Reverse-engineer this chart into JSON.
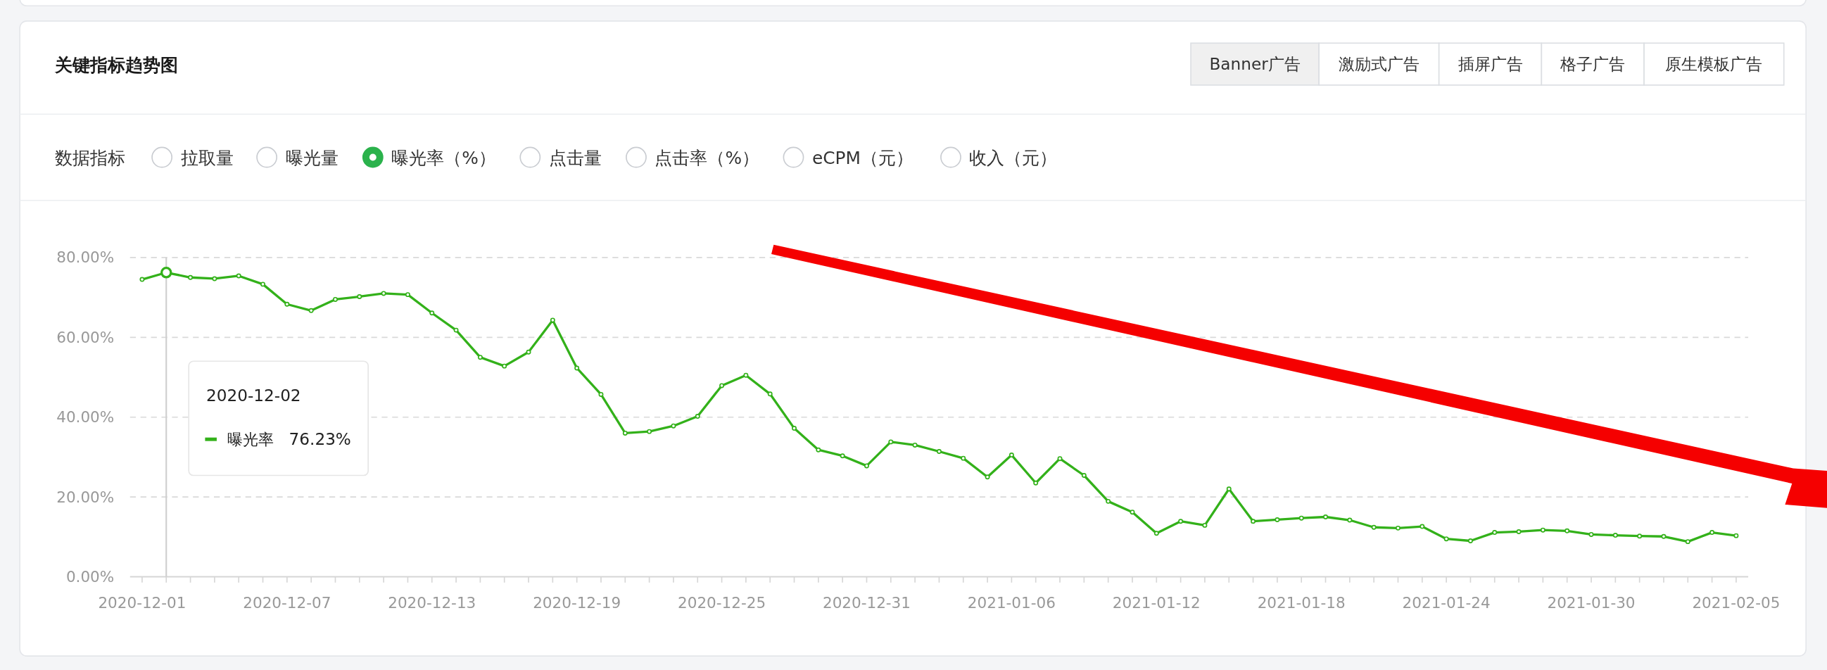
{
  "chart_data": {
    "type": "line",
    "title": "关键指标趋势图",
    "x": [
      "2020-12-01",
      "2020-12-02",
      "2020-12-03",
      "2020-12-04",
      "2020-12-05",
      "2020-12-06",
      "2020-12-07",
      "2020-12-08",
      "2020-12-09",
      "2020-12-10",
      "2020-12-11",
      "2020-12-12",
      "2020-12-13",
      "2020-12-14",
      "2020-12-15",
      "2020-12-16",
      "2020-12-17",
      "2020-12-18",
      "2020-12-19",
      "2020-12-20",
      "2020-12-21",
      "2020-12-22",
      "2020-12-23",
      "2020-12-24",
      "2020-12-25",
      "2020-12-26",
      "2020-12-27",
      "2020-12-28",
      "2020-12-29",
      "2020-12-30",
      "2020-12-31",
      "2021-01-01",
      "2021-01-02",
      "2021-01-03",
      "2021-01-04",
      "2021-01-05",
      "2021-01-06",
      "2021-01-07",
      "2021-01-08",
      "2021-01-09",
      "2021-01-10",
      "2021-01-11",
      "2021-01-12",
      "2021-01-13",
      "2021-01-14",
      "2021-01-15",
      "2021-01-16",
      "2021-01-17",
      "2021-01-18",
      "2021-01-19",
      "2021-01-20",
      "2021-01-21",
      "2021-01-22",
      "2021-01-23",
      "2021-01-24",
      "2021-01-25",
      "2021-01-26",
      "2021-01-27",
      "2021-01-28",
      "2021-01-29",
      "2021-01-30",
      "2021-01-31",
      "2021-02-01",
      "2021-02-02",
      "2021-02-03",
      "2021-02-04",
      "2021-02-05"
    ],
    "series": [
      {
        "name": "曝光率",
        "color": "#33b11a",
        "values": [
          74.5,
          76.23,
          75.0,
          74.7,
          75.4,
          73.3,
          68.3,
          66.7,
          69.5,
          70.2,
          71.0,
          70.7,
          66.1,
          61.8,
          55.0,
          52.8,
          56.3,
          64.3,
          52.3,
          45.7,
          36.0,
          36.4,
          37.8,
          40.2,
          47.9,
          50.5,
          45.8,
          37.2,
          31.8,
          30.3,
          27.8,
          33.8,
          33.0,
          31.4,
          29.7,
          25.0,
          30.5,
          23.5,
          29.6,
          25.4,
          18.9,
          16.2,
          10.9,
          13.9,
          12.9,
          22.0,
          13.9,
          14.3,
          14.7,
          15.0,
          14.2,
          12.4,
          12.2,
          12.6,
          9.5,
          9.0,
          11.1,
          11.3,
          11.7,
          11.5,
          10.6,
          10.4,
          10.2,
          10.1,
          8.8,
          11.1,
          10.3
        ]
      }
    ],
    "xlim": [
      "2020-11-30T12:00",
      "2021-02-05T12:00"
    ],
    "xticks": [
      "2020-12-01",
      {
        "value": "2020-12-02",
        "label": null
      },
      {
        "value": "2020-12-03",
        "label": null
      },
      {
        "value": "2020-12-04",
        "label": null
      },
      {
        "value": "2020-12-05",
        "label": null
      },
      {
        "value": "2020-12-06",
        "label": null
      },
      "2020-12-07",
      {
        "value": "2020-12-08",
        "label": null
      },
      {
        "value": "2020-12-09",
        "label": null
      },
      {
        "value": "2020-12-10",
        "label": null
      },
      {
        "value": "2020-12-11",
        "label": null
      },
      {
        "value": "2020-12-12",
        "label": null
      },
      "2020-12-13",
      {
        "value": "2020-12-14",
        "label": null
      },
      {
        "value": "2020-12-15",
        "label": null
      },
      {
        "value": "2020-12-16",
        "label": null
      },
      {
        "value": "2020-12-17",
        "label": null
      },
      {
        "value": "2020-12-18",
        "label": null
      },
      "2020-12-19",
      {
        "value": "2020-12-20",
        "label": null
      },
      {
        "value": "2020-12-21",
        "label": null
      },
      {
        "value": "2020-12-22",
        "label": null
      },
      {
        "value": "2020-12-23",
        "label": null
      },
      {
        "value": "2020-12-24",
        "label": null
      },
      "2020-12-25",
      {
        "value": "2020-12-26",
        "label": null
      },
      {
        "value": "2020-12-27",
        "label": null
      },
      {
        "value": "2020-12-28",
        "label": null
      },
      {
        "value": "2020-12-29",
        "label": null
      },
      {
        "value": "2020-12-30",
        "label": null
      },
      "2020-12-31",
      {
        "value": "2021-01-01",
        "label": null
      },
      {
        "value": "2021-01-02",
        "label": null
      },
      {
        "value": "2021-01-03",
        "label": null
      },
      {
        "value": "2021-01-04",
        "label": null
      },
      {
        "value": "2021-01-05",
        "label": null
      },
      "2021-01-06",
      {
        "value": "2021-01-07",
        "label": null
      },
      {
        "value": "2021-01-08",
        "label": null
      },
      {
        "value": "2021-01-09",
        "label": null
      },
      {
        "value": "2021-01-10",
        "label": null
      },
      {
        "value": "2021-01-11",
        "label": null
      },
      "2021-01-12",
      {
        "value": "2021-01-13",
        "label": null
      },
      {
        "value": "2021-01-14",
        "label": null
      },
      {
        "value": "2021-01-15",
        "label": null
      },
      {
        "value": "2021-01-16",
        "label": null
      },
      {
        "value": "2021-01-17",
        "label": null
      },
      "2021-01-18",
      {
        "value": "2021-01-19",
        "label": null
      },
      {
        "value": "2021-01-20",
        "label": null
      },
      {
        "value": "2021-01-21",
        "label": null
      },
      {
        "value": "2021-01-22",
        "label": null
      },
      {
        "value": "2021-01-23",
        "label": null
      },
      "2021-01-24",
      {
        "value": "2021-01-25",
        "label": null
      },
      {
        "value": "2021-01-26",
        "label": null
      },
      {
        "value": "2021-01-27",
        "label": null
      },
      {
        "value": "2021-01-28",
        "label": null
      },
      {
        "value": "2021-01-29",
        "label": null
      },
      "2021-01-30",
      {
        "value": "2021-01-31",
        "label": null
      },
      {
        "value": "2021-02-01",
        "label": null
      },
      {
        "value": "2021-02-02",
        "label": null
      },
      {
        "value": "2021-02-03",
        "label": null
      },
      {
        "value": "2021-02-04",
        "label": null
      },
      "2021-02-05"
    ],
    "ylim": [
      0,
      80
    ],
    "yticks": [
      {
        "value": 0,
        "label": "0.00%"
      },
      {
        "value": 20,
        "label": "20.00%"
      },
      {
        "value": 40,
        "label": "40.00%"
      },
      {
        "value": 60,
        "label": "60.00%"
      },
      {
        "value": 80,
        "label": "80.00%"
      }
    ],
    "ref_lines": [
      {
        "axis": "x",
        "value": "2020-12-02",
        "color": "#cfcfcf"
      }
    ],
    "grid": "y",
    "marker": "circle",
    "line_style": "solid",
    "annotations": [
      "Banner广告",
      "激励式广告",
      "插屏广告",
      "格子广告",
      "原生模板广告",
      "数据指标",
      "拉取量",
      "曝光量",
      "曝光率（%）",
      "点击量",
      "点击率（%）",
      "eCPM（元）",
      "收入（元）",
      "2020-12-02",
      "76.23%"
    ]
  }
}
